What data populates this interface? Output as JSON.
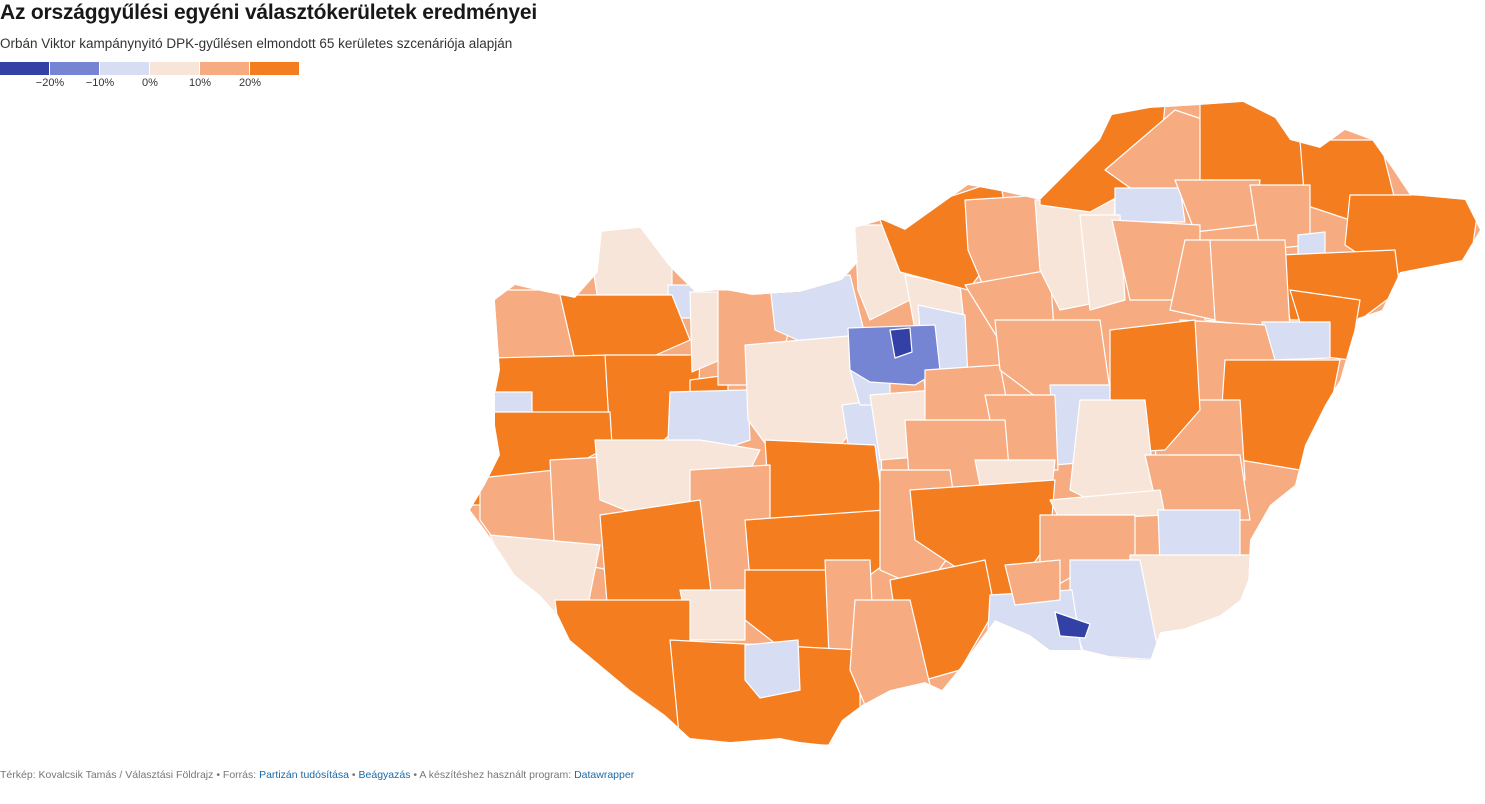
{
  "header": {
    "title": "Az országgyűlési egyéni választókerületek eredményei",
    "subtitle": "Orbán Viktor kampánynyitó DPK-gyűlésen elmondott 65 kerületes szcenáriója alapján"
  },
  "legend": {
    "colors": [
      "#3341a6",
      "#7585d3",
      "#d7ddf3",
      "#f8e5d9",
      "#f6ab81",
      "#f47d20"
    ],
    "ticks": [
      "−20%",
      "−10%",
      "0%",
      "10%",
      "20%"
    ]
  },
  "palette": {
    "strong_orange": "#f47d20",
    "light_orange": "#f6ab81",
    "cream": "#f8e5d9",
    "light_blue": "#d7ddf3",
    "mid_blue": "#7585d3",
    "dark_blue": "#3341a6",
    "border": "#ffffff"
  },
  "footer": {
    "credit": "Térkép: Kovalcsik Tamás / Választási Földrajz",
    "source_prefix": "• Forrás:",
    "source_link": "Partizán tudósítása",
    "embed_sep": "•",
    "embed_link": "Beágyazás",
    "tool_prefix": "• A készítéshez használt program:",
    "tool_link": "Datawrapper"
  }
}
